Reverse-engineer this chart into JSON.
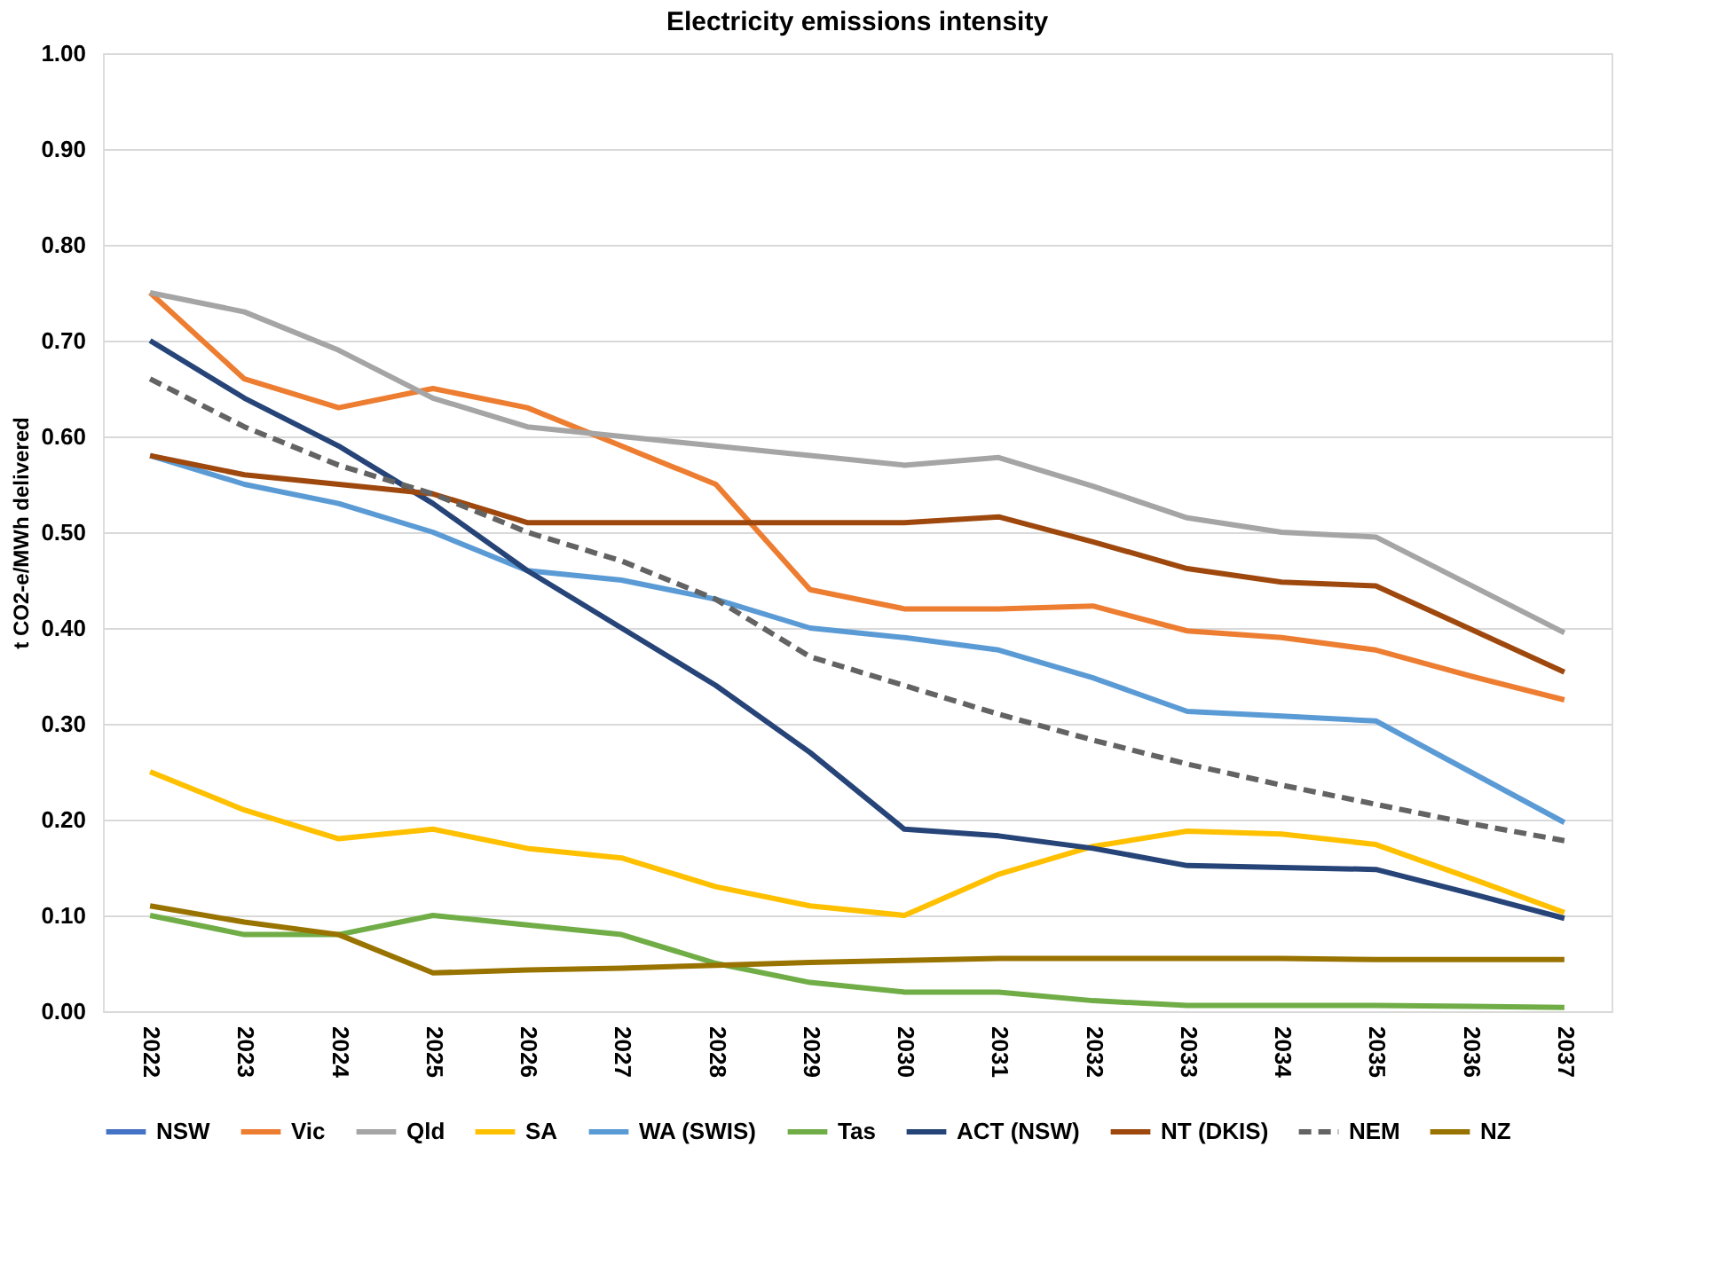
{
  "chart_data": {
    "type": "line",
    "title": "Electricity emissions intensity",
    "ylabel": "t CO2-e/MWh delivered",
    "categories": [
      "2022",
      "2023",
      "2024",
      "2025",
      "2026",
      "2027",
      "2028",
      "2029",
      "2030",
      "2031",
      "2032",
      "2033",
      "2034",
      "2035",
      "2036",
      "2037"
    ],
    "ylim": [
      0,
      1
    ],
    "yticks": [
      {
        "value": 0,
        "label": "0.00"
      },
      {
        "value": 0.1,
        "label": "0.10"
      },
      {
        "value": 0.2,
        "label": "0.20"
      },
      {
        "value": 0.3,
        "label": "0.30"
      },
      {
        "value": 0.4,
        "label": "0.40"
      },
      {
        "value": 0.5,
        "label": "0.50"
      },
      {
        "value": 0.6,
        "label": "0.60"
      },
      {
        "value": 0.7,
        "label": "0.70"
      },
      {
        "value": 0.8,
        "label": "0.80"
      },
      {
        "value": 0.9,
        "label": "0.90"
      },
      {
        "value": 1,
        "label": "1.00"
      }
    ],
    "grid": "y",
    "legend": "bottom",
    "marker": "none",
    "line_style": "solid",
    "series": [
      {
        "name": "NSW",
        "color": "#4472c4",
        "values": [
          null,
          null,
          null,
          null,
          null,
          null,
          null,
          null,
          null,
          null,
          null,
          null,
          null,
          null,
          null,
          null
        ]
      },
      {
        "name": "Vic",
        "color": "#ed7d31",
        "values": [
          0.75,
          0.66,
          0.63,
          0.65,
          0.63,
          0.59,
          0.55,
          0.44,
          0.42,
          0.42,
          0.423,
          0.397,
          0.39,
          0.377,
          0.35,
          0.325
        ]
      },
      {
        "name": "Qld",
        "color": "#a5a5a5",
        "values": [
          0.75,
          0.73,
          0.69,
          0.64,
          0.61,
          0.6,
          0.59,
          0.58,
          0.57,
          0.578,
          0.548,
          0.515,
          0.5,
          0.495,
          0.445,
          0.395
        ]
      },
      {
        "name": "SA",
        "color": "#ffc000",
        "values": [
          0.25,
          0.21,
          0.18,
          0.19,
          0.17,
          0.16,
          0.13,
          0.11,
          0.1,
          0.143,
          0.172,
          0.188,
          0.185,
          0.174,
          0.139,
          0.103
        ]
      },
      {
        "name": "WA (SWIS)",
        "color": "#5b9bd5",
        "values": [
          0.58,
          0.55,
          0.53,
          0.5,
          0.46,
          0.45,
          0.43,
          0.4,
          0.39,
          0.377,
          0.348,
          0.313,
          0.308,
          0.303,
          0.25,
          0.197
        ]
      },
      {
        "name": "Tas",
        "color": "#70ad47",
        "values": [
          0.1,
          0.08,
          0.08,
          0.1,
          0.09,
          0.08,
          0.05,
          0.03,
          0.02,
          0.02,
          0.011,
          0.006,
          0.006,
          0.006,
          0.005,
          0.004
        ]
      },
      {
        "name": "ACT (NSW)",
        "color": "#264478",
        "values": [
          0.7,
          0.64,
          0.59,
          0.53,
          0.46,
          0.4,
          0.34,
          0.27,
          0.19,
          0.183,
          0.17,
          0.152,
          0.15,
          0.148,
          0.123,
          0.097
        ]
      },
      {
        "name": "NT (DKIS)",
        "color": "#9e480e",
        "values": [
          0.58,
          0.56,
          0.55,
          0.54,
          0.51,
          0.51,
          0.51,
          0.51,
          0.51,
          0.516,
          0.49,
          0.462,
          0.448,
          0.444,
          0.399,
          0.354
        ]
      },
      {
        "name": "NEM",
        "color": "#636363",
        "line_style": "dashed",
        "values": [
          0.66,
          0.61,
          0.57,
          0.54,
          0.5,
          0.47,
          0.43,
          0.37,
          0.34,
          0.31,
          0.283,
          0.258,
          0.236,
          0.216,
          0.196,
          0.178
        ]
      },
      {
        "name": "NZ",
        "color": "#997300",
        "values": [
          0.11,
          0.093,
          0.08,
          0.04,
          0.043,
          0.045,
          0.048,
          0.051,
          0.053,
          0.055,
          0.055,
          0.055,
          0.055,
          0.054,
          0.054,
          0.054
        ]
      }
    ]
  }
}
